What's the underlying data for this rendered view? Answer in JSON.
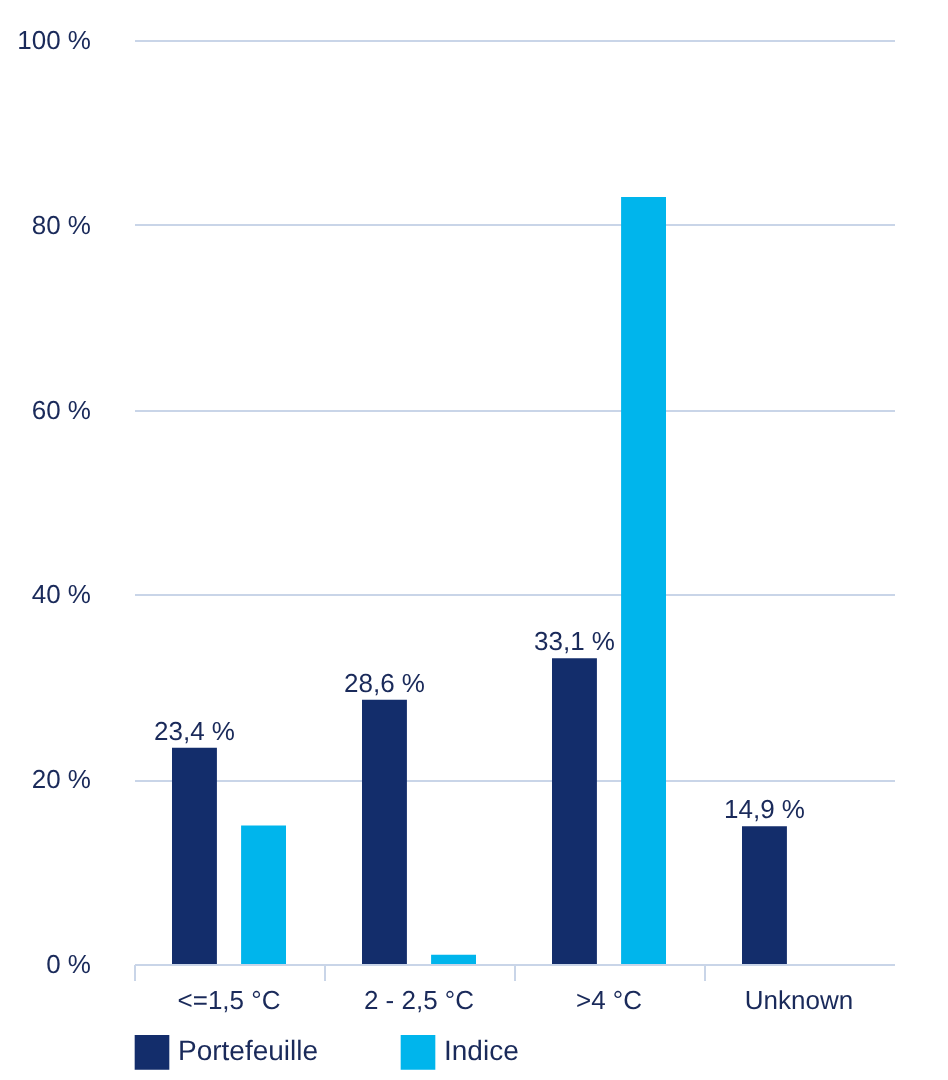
{
  "chart_data": {
    "type": "bar",
    "categories": [
      "<=1,5 °C",
      "2 - 2,5 °C",
      ">4 °C",
      "Unknown"
    ],
    "series": [
      {
        "name": "Portefeuille",
        "color": "#132d6b",
        "values": [
          23.4,
          28.6,
          33.1,
          14.9
        ],
        "value_labels": [
          "23,4 %",
          "28,6 %",
          "33,1 %",
          "14,9 %"
        ]
      },
      {
        "name": "Indice",
        "color": "#00b5ec",
        "values": [
          15,
          1,
          83,
          0
        ]
      }
    ],
    "ylim": [
      0,
      100
    ],
    "yticks": [
      {
        "value": 0,
        "label": "0 %"
      },
      {
        "value": 20,
        "label": "20 %"
      },
      {
        "value": 40,
        "label": "40 %"
      },
      {
        "value": 60,
        "label": "60 %"
      },
      {
        "value": 80,
        "label": "80 %"
      },
      {
        "value": 100,
        "label": "100 %"
      }
    ],
    "grid": "y",
    "legend": "bottom"
  }
}
